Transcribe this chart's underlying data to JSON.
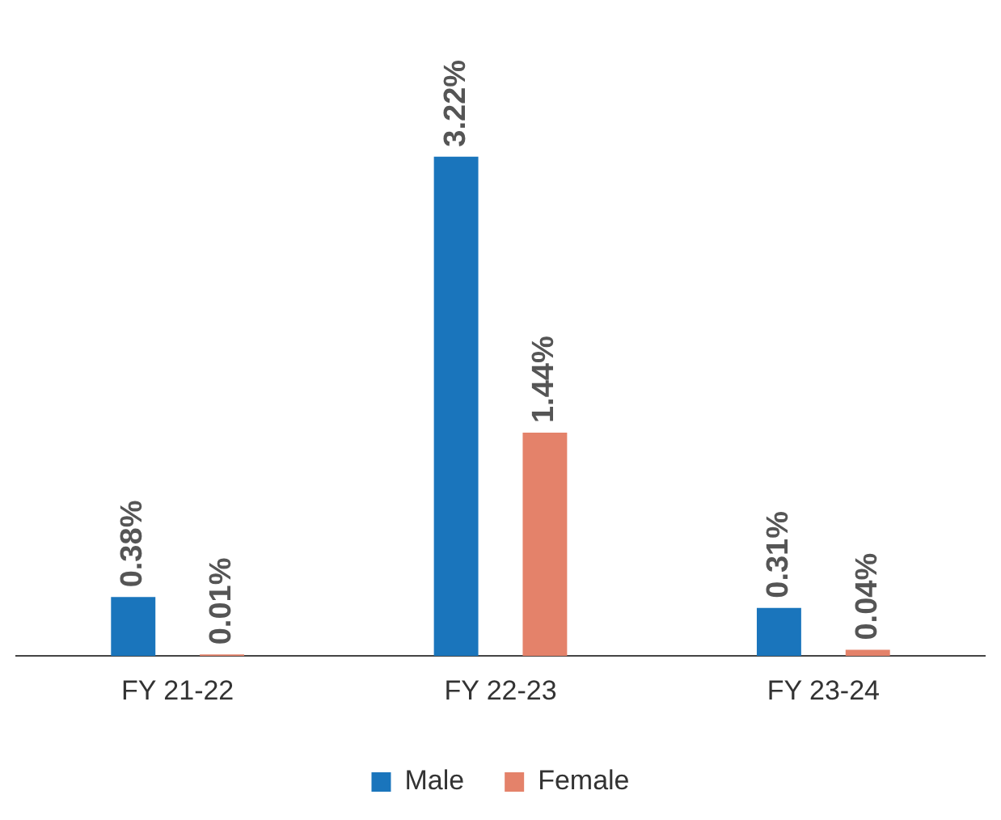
{
  "chart_data": {
    "type": "bar",
    "categories": [
      "FY 21-22",
      "FY 22-23",
      "FY 23-24"
    ],
    "series": [
      {
        "name": "Male",
        "color": "#1a75bc",
        "values": [
          0.38,
          3.22,
          0.31
        ],
        "value_labels": [
          "0.38%",
          "3.22%",
          "0.31%"
        ]
      },
      {
        "name": "Female",
        "color": "#e4826a",
        "values": [
          0.01,
          1.44,
          0.04
        ],
        "value_labels": [
          "0.01%",
          "1.44%",
          "0.04%"
        ]
      }
    ],
    "legend": "bottom",
    "grid": false
  }
}
